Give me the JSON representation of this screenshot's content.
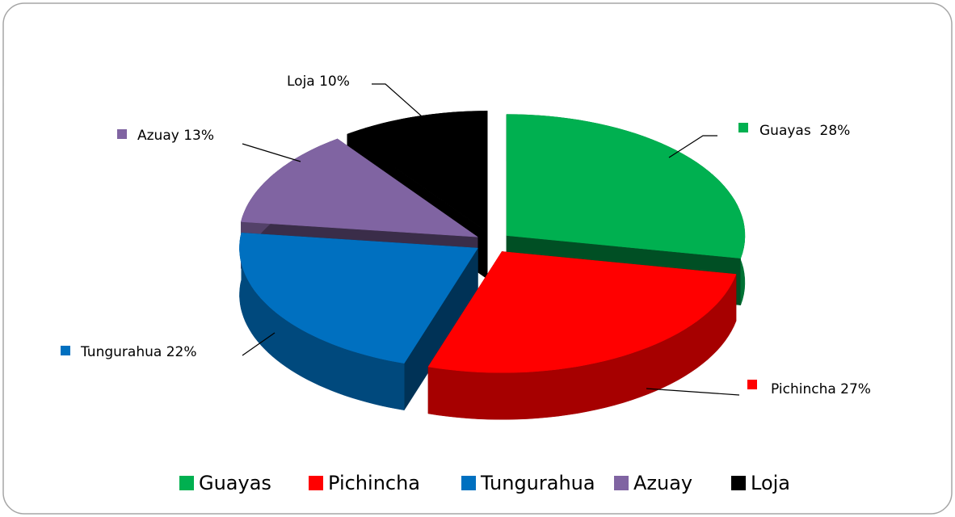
{
  "chart_data": {
    "type": "pie",
    "categories": [
      "Guayas",
      "Pichincha",
      "Tungurahua",
      "Azuay",
      "Loja"
    ],
    "values": [
      28,
      27,
      22,
      13,
      10
    ],
    "value_labels": [
      "Guayas  28%",
      "Pichincha 27%",
      "Tungurahua 22%",
      "Azuay 13%",
      "Loja 10%"
    ],
    "colors": [
      "#00b050",
      "#ff0000",
      "#0070c0",
      "#8064a2",
      "#000000"
    ],
    "legend": "bottom"
  }
}
